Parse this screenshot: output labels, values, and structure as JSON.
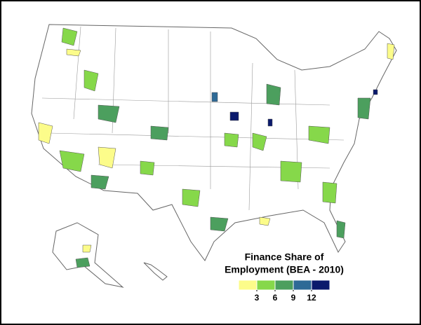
{
  "legend": {
    "title_lines": [
      "Finance Share of",
      "Employment (BEA - 2010)"
    ],
    "colors": [
      "#fcfc8a",
      "#86d84a",
      "#4c9f5e",
      "#2e6a96",
      "#0b1a6c"
    ],
    "ticks": [
      3,
      6,
      9,
      12
    ]
  }
}
